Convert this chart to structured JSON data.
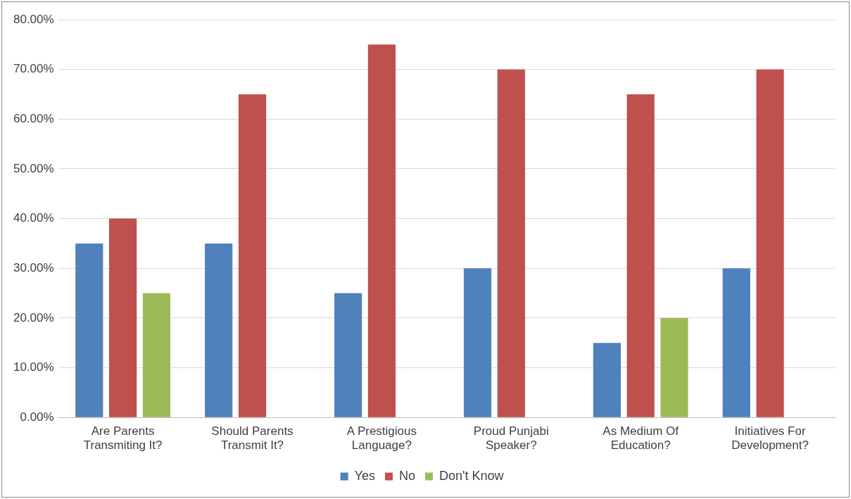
{
  "chart_data": {
    "type": "bar",
    "categories": [
      "Are Parents Transmiting It?",
      "Should Parents Transmit It?",
      "A Prestigious Language?",
      "Proud Punjabi Speaker?",
      "As Medium Of Education?",
      "Initiatives For Development?"
    ],
    "series": [
      {
        "name": "Yes",
        "color": "#4f81bd",
        "values": [
          35,
          35,
          25,
          30,
          15,
          30
        ]
      },
      {
        "name": "No",
        "color": "#c0504d",
        "values": [
          40,
          65,
          75,
          70,
          65,
          70
        ]
      },
      {
        "name": "Don't Know",
        "color": "#9bbb59",
        "values": [
          25,
          null,
          null,
          null,
          20,
          null
        ]
      }
    ],
    "ylim": [
      0,
      80
    ],
    "yticks": [
      {
        "value": 0,
        "label": "0.00%"
      },
      {
        "value": 10,
        "label": "10.00%"
      },
      {
        "value": 20,
        "label": "20.00%"
      },
      {
        "value": 30,
        "label": "30.00%"
      },
      {
        "value": 40,
        "label": "40.00%"
      },
      {
        "value": 50,
        "label": "50.00%"
      },
      {
        "value": 60,
        "label": "60.00%"
      },
      {
        "value": 70,
        "label": "70.00%"
      },
      {
        "value": 80,
        "label": "80.00%"
      }
    ],
    "grid": "y",
    "legend": "bottom"
  }
}
